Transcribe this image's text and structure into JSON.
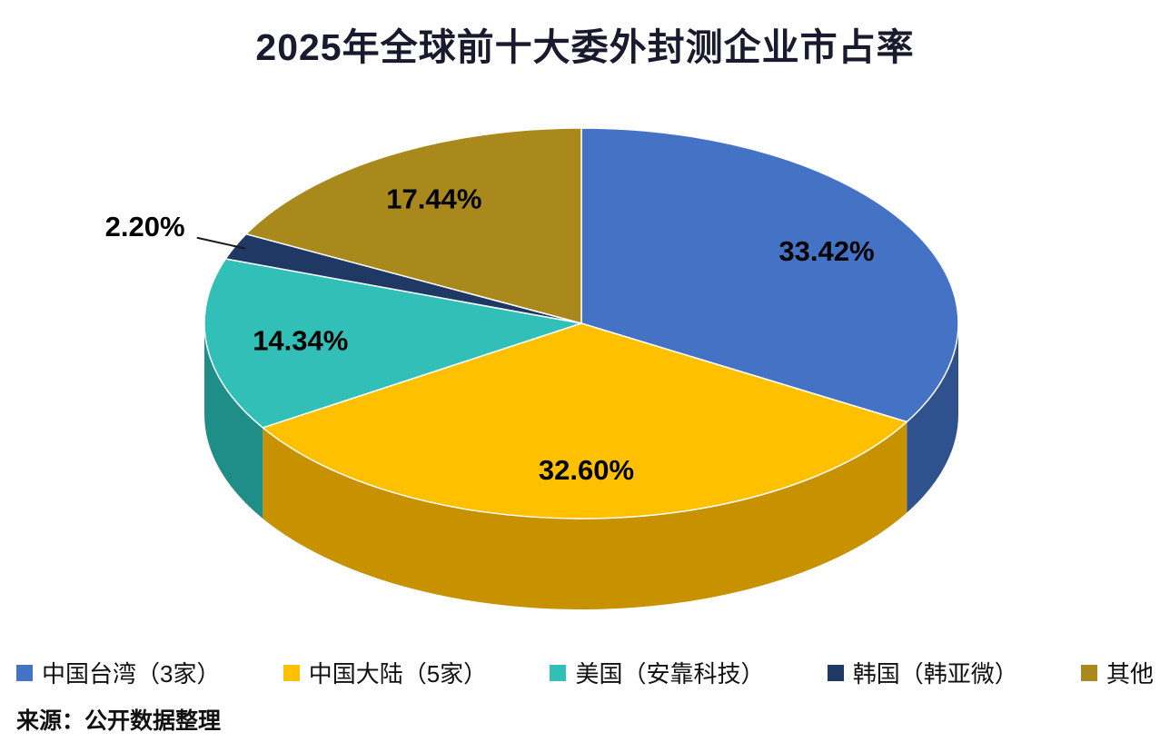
{
  "title": "2025年全球前十大委外封测企业市占率",
  "source": "来源：公开数据整理",
  "chart_data": {
    "type": "pie",
    "style": "3d",
    "title": "2025年全球前十大委外封测企业市占率",
    "legend_position": "bottom",
    "series": [
      {
        "label": "中国台湾（3家）",
        "value": 33.42,
        "display": "33.42%",
        "color": "#4472C4",
        "side_color": "#2F528F"
      },
      {
        "label": "中国大陆（5家）",
        "value": 32.6,
        "display": "32.60%",
        "color": "#FFC000",
        "side_color": "#C79100"
      },
      {
        "label": "美国（安靠科技）",
        "value": 14.34,
        "display": "14.34%",
        "color": "#31BFB7",
        "side_color": "#1F8E88"
      },
      {
        "label": "韩国（韩亚微）",
        "value": 2.2,
        "display": "2.20%",
        "color": "#1F3864",
        "side_color": "#142647"
      },
      {
        "label": "其他",
        "value": 17.44,
        "display": "17.44%",
        "color": "#A9891B",
        "side_color": "#7A6313"
      }
    ]
  }
}
